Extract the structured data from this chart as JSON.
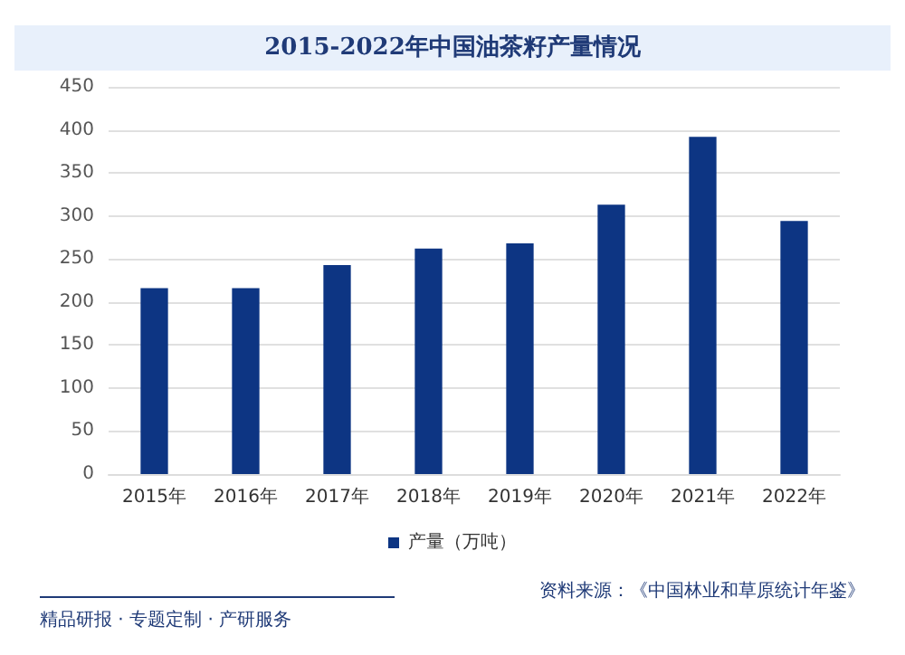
{
  "chart_data": {
    "type": "bar",
    "title": "2015-2022年中国油茶籽产量情况",
    "categories": [
      "2015年",
      "2016年",
      "2017年",
      "2018年",
      "2019年",
      "2020年",
      "2021年",
      "2022年"
    ],
    "series": [
      {
        "name": "产量（万吨）",
        "color": "#0d3583",
        "values": [
          216,
          216,
          243,
          262,
          268,
          313,
          392,
          294
        ]
      }
    ],
    "ylim": [
      0,
      450
    ],
    "yticks": [
      0,
      50,
      100,
      150,
      200,
      250,
      300,
      350,
      400,
      450
    ],
    "grid": "y",
    "legend": "bottom",
    "annotations": [
      "资料来源：《中国林业和草原统计年鉴》",
      "精品研报 · 专题定制 · 产研服务"
    ]
  }
}
